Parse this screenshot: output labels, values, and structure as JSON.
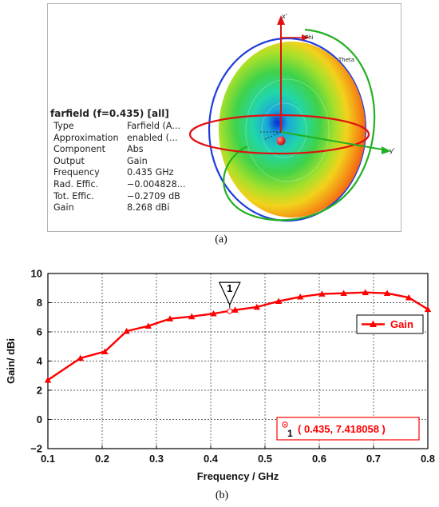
{
  "figure_a": {
    "caption": "(a)",
    "info_title": "farfield (f=0.435) [all]",
    "rows": [
      {
        "key": "Type",
        "value": "Farfield (A..."
      },
      {
        "key": "Approximation",
        "value": "enabled (..."
      },
      {
        "key": "Component",
        "value": "Abs"
      },
      {
        "key": "Output",
        "value": "Gain"
      },
      {
        "key": "Frequency",
        "value": "0.435 GHz"
      },
      {
        "key": "Rad. Effic.",
        "value": "−0.004828..."
      },
      {
        "key": "Tot. Effic.",
        "value": "−0.2709 dB"
      },
      {
        "key": "Gain",
        "value": "8.268 dBi"
      }
    ],
    "axis_labels": {
      "x": "x'",
      "y": "y'",
      "phi": "Phi",
      "theta": "Theta"
    },
    "colors": {
      "pattern_red": "#ee1a1a",
      "pattern_green": "#3cc83c",
      "pattern_blue": "#2020c8",
      "ring_blue": "#1f3ddc",
      "ring_green": "#22b022",
      "ring_red": "#e01010"
    }
  },
  "chart_data": {
    "type": "line",
    "x": [
      0.1,
      0.16,
      0.205,
      0.245,
      0.285,
      0.325,
      0.365,
      0.405,
      0.445,
      0.485,
      0.525,
      0.565,
      0.605,
      0.645,
      0.685,
      0.725,
      0.765,
      0.8
    ],
    "series": [
      {
        "name": "Gain",
        "values": [
          2.7,
          4.2,
          4.65,
          6.05,
          6.4,
          6.9,
          7.05,
          7.25,
          7.5,
          7.7,
          8.1,
          8.4,
          8.6,
          8.65,
          8.7,
          8.65,
          8.35,
          7.55
        ],
        "color": "#ff0000"
      }
    ],
    "marker_point": {
      "label": "1",
      "x": 0.435,
      "y": 7.418058,
      "readout": "( 0.435, 7.418058 )"
    },
    "xlabel": "Frequency / GHz",
    "ylabel": "Gain/ dBi",
    "xlim": [
      0.1,
      0.8
    ],
    "ylim": [
      -2,
      10
    ],
    "xticks": [
      "0.1",
      "0.2",
      "0.3",
      "0.4",
      "0.5",
      "0.6",
      "0.7",
      "0.8"
    ],
    "yticks": [
      "−2",
      "0",
      "2",
      "4",
      "6",
      "8",
      "10"
    ],
    "grid": true,
    "legend_position": "right",
    "caption": "(b)"
  }
}
